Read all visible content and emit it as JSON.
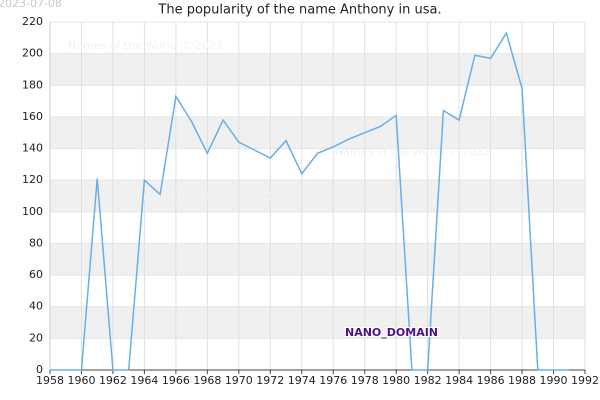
{
  "chart_data": {
    "type": "line",
    "title": "The popularity of the name Anthony in usa.",
    "x": [
      1958,
      1959,
      1960,
      1961,
      1962,
      1963,
      1964,
      1965,
      1966,
      1967,
      1968,
      1969,
      1970,
      1971,
      1972,
      1973,
      1974,
      1975,
      1976,
      1977,
      1978,
      1979,
      1980,
      1981,
      1982,
      1983,
      1984,
      1985,
      1986,
      1987,
      1988,
      1989,
      1990,
      1991
    ],
    "series": [
      {
        "name": "Anthony",
        "color": "#6aaee8",
        "values": [
          0,
          0,
          0,
          121,
          0,
          0,
          120,
          111,
          173,
          157,
          137,
          158,
          144,
          139,
          134,
          145,
          124,
          137,
          141,
          146,
          150,
          154,
          161,
          0,
          0,
          164,
          158,
          199,
          197,
          213,
          178,
          0,
          0,
          0
        ]
      }
    ],
    "xlim": [
      1958,
      1992
    ],
    "xticks": [
      1958,
      1960,
      1962,
      1964,
      1966,
      1968,
      1970,
      1972,
      1974,
      1976,
      1978,
      1980,
      1982,
      1984,
      1986,
      1988,
      1990,
      1992
    ],
    "ylim": [
      0,
      220
    ],
    "yticks": [
      0,
      20,
      40,
      60,
      80,
      100,
      120,
      140,
      160,
      180,
      200,
      220
    ],
    "grid": true,
    "annotations": [
      "2023-07-08",
      "Names of the World © 2023",
      "Names of the World © 2023",
      "Names of the World © 2023",
      "NANO_DOMAIN"
    ]
  }
}
